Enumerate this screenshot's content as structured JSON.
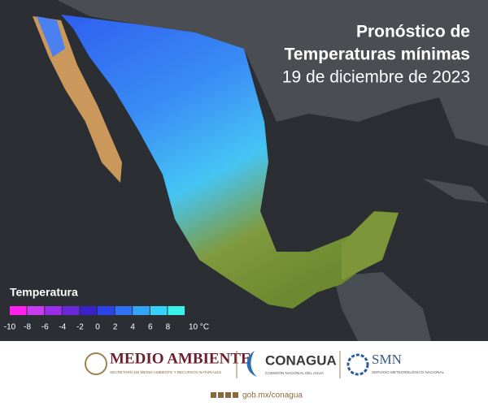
{
  "header": {
    "title_line1": "Pronóstico de",
    "title_line2": "Temperaturas mínimas",
    "date": "19 de diciembre de 2023"
  },
  "legend": {
    "title": "Temperatura",
    "colors": [
      "#ff22ee",
      "#c83cf0",
      "#9a2ee8",
      "#6a28d8",
      "#3a22c8",
      "#2a44e8",
      "#2f72f4",
      "#33a6fa",
      "#35d2fb",
      "#38f3ea"
    ],
    "labels": [
      "-10",
      "-8",
      "-6",
      "-4",
      "-2",
      "0",
      "2",
      "4",
      "6",
      "8",
      "10 °C"
    ]
  },
  "footer": {
    "semarnat": "MEDIO AMBIENTE",
    "semarnat_sub": "SECRETARÍA DE MEDIO AMBIENTE Y RECURSOS NATURALES",
    "conagua": "CONAGUA",
    "conagua_sub": "COMISIÓN NACIONAL DEL AGUA",
    "smn": "SMN",
    "smn_sub": "SERVICIO METEOROLÓGICO NACIONAL",
    "url": "gob.mx/conagua"
  }
}
